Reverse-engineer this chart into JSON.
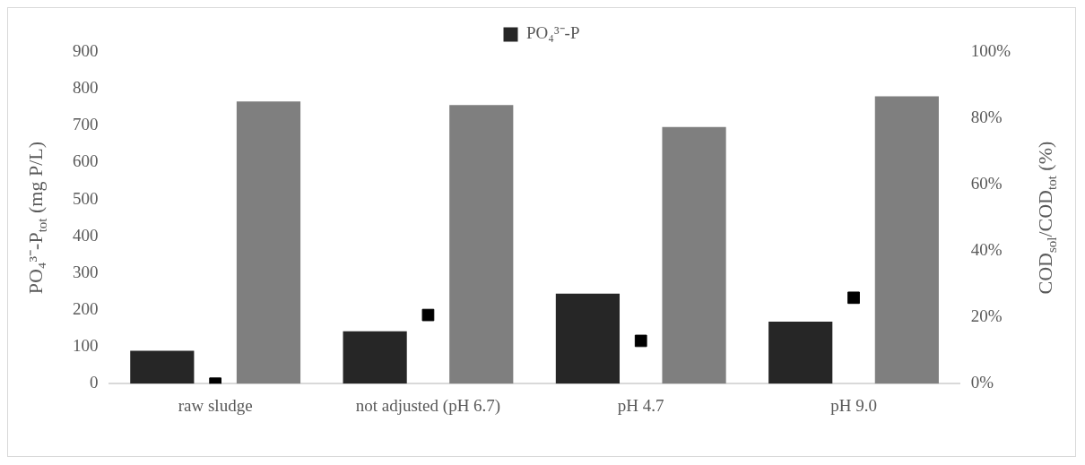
{
  "chart_data": {
    "type": "bar",
    "categories": [
      "raw sludge",
      "not adjusted (pH 6.7)",
      "pH 4.7",
      "pH 9.0"
    ],
    "series": [
      {
        "name": "PO₄³⁻-P",
        "color": "#262626",
        "values": [
          89,
          142,
          244,
          168
        ]
      },
      {
        "color": "#7f7f7f",
        "values": [
          85.1,
          84.0,
          77.4,
          86.6
        ],
        "axis": "y2"
      },
      {
        "type": "scatter",
        "color": "#000000",
        "x": [
          "raw sludge",
          "not adjusted (pH 6.7)",
          "pH 4.7",
          "pH 9.0"
        ],
        "values": [
          0,
          20.7,
          12.9,
          25.9
        ],
        "axis": "y2",
        "marker": "square"
      }
    ],
    "ylabel": "PO₄³⁻-P$_{tot}$ (mg P/L)",
    "y2label": "COD$_{sol}$/COD$_{tot}$ (%)",
    "ylim": [
      0,
      900
    ],
    "yticks": [
      0,
      100,
      200,
      300,
      400,
      500,
      600,
      700,
      800,
      900
    ],
    "y2lim": [
      0,
      100
    ],
    "y2ticks": [
      {
        "value": 0,
        "label": "0%"
      },
      {
        "value": 20,
        "label": "20%"
      },
      {
        "value": 40,
        "label": "40%"
      },
      {
        "value": 60,
        "label": "60%"
      },
      {
        "value": 80,
        "label": "80%"
      },
      {
        "value": 100,
        "label": "100%"
      }
    ],
    "grid": false,
    "legend": "top"
  }
}
